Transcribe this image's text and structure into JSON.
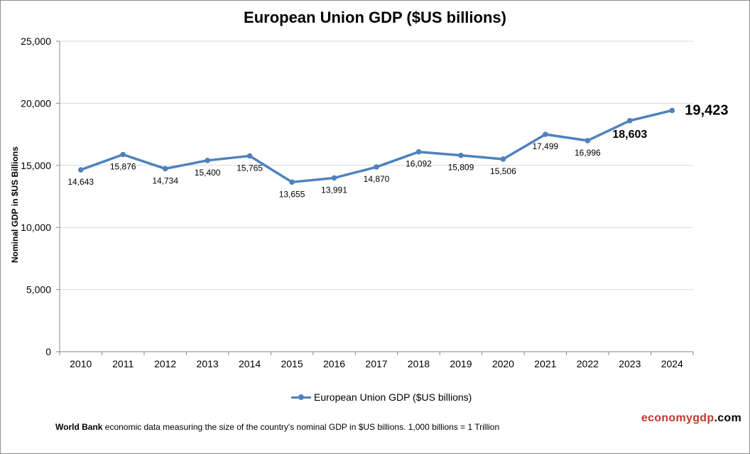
{
  "chart_data": {
    "type": "line",
    "title": "European Union GDP ($US billions)",
    "ylabel": "Nominal GDP in $US  Billions",
    "xlabel": "",
    "ylim": [
      0,
      25000
    ],
    "yticks": [
      0,
      5000,
      10000,
      15000,
      20000,
      25000
    ],
    "ytick_labels": [
      "0",
      "5,000",
      "10,000",
      "15,000",
      "20,000",
      "25,000"
    ],
    "grid": "horizontal",
    "legend_position": "bottom",
    "categories": [
      "2010",
      "2011",
      "2012",
      "2013",
      "2014",
      "2015",
      "2016",
      "2017",
      "2018",
      "2019",
      "2020",
      "2021",
      "2022",
      "2023",
      "2024"
    ],
    "series": [
      {
        "name": "European Union GDP ($US billions)",
        "color": "#4f81bd",
        "values": [
          14643,
          15876,
          14734,
          15400,
          15765,
          13655,
          13991,
          14870,
          16092,
          15809,
          15506,
          17499,
          16996,
          18603,
          19423
        ],
        "labels": [
          "14,643",
          "15,876",
          "14,734",
          "15,400",
          "15,765",
          "13,655",
          "13,991",
          "14,870",
          "16,092",
          "15,809",
          "15,506",
          "17,499",
          "16,996",
          "18,603",
          "19,423"
        ]
      }
    ]
  },
  "footnote": {
    "source": "World Bank",
    "text": " economic data  measuring the size of the country's nominal GDP in $US billions. 1,000 billions = 1 Trillion"
  },
  "brand": {
    "part1": "economygdp",
    "part2": ".com"
  }
}
